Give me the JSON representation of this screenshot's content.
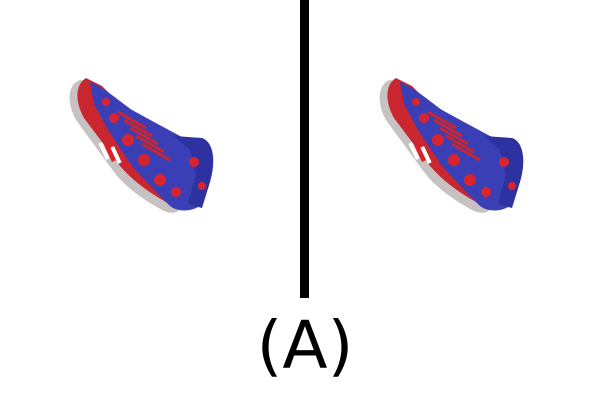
{
  "label": "(A)",
  "panels": [
    {
      "content": "sneaker-image",
      "icon": "sneaker-icon"
    },
    {
      "content": "sneaker-image",
      "icon": "sneaker-icon"
    }
  ],
  "colors": {
    "shoe_body": "#3a3fb5",
    "shoe_pattern": "#d8242f",
    "sole": "#c7c1c1",
    "stripe_white": "#ffffff",
    "stripe_red": "#e01f26",
    "divider": "#000000"
  }
}
